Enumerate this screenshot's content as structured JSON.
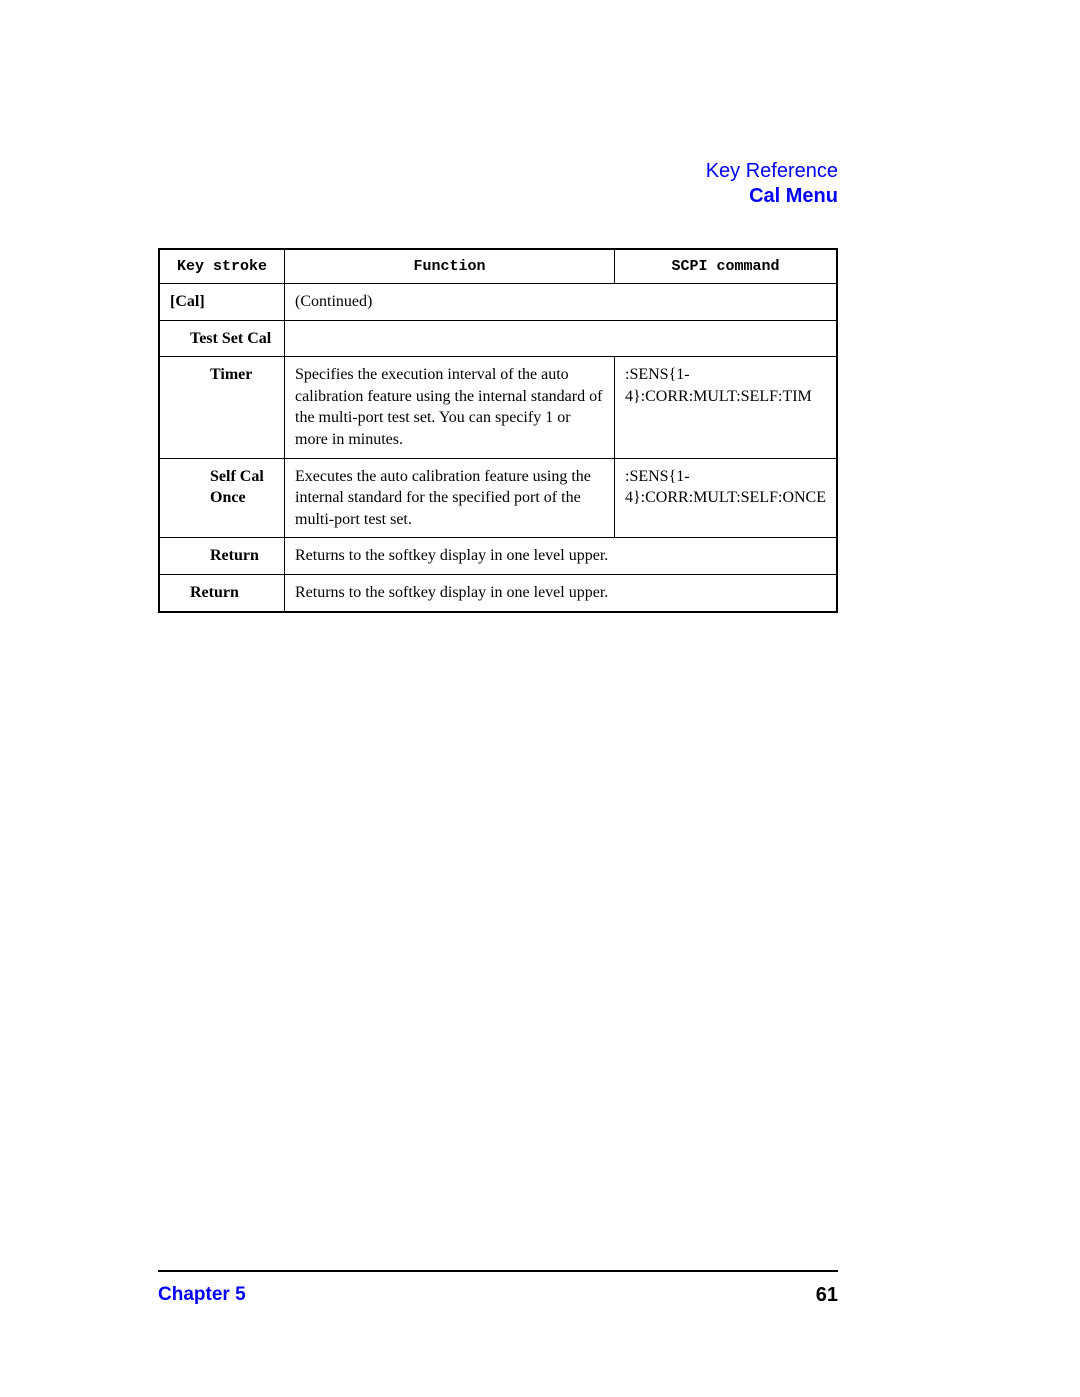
{
  "header": {
    "link": "Key Reference",
    "title": "Cal Menu"
  },
  "table": {
    "headers": {
      "keystroke": "Key stroke",
      "function": "Function",
      "scpi": "SCPI command"
    },
    "rows": {
      "cal": {
        "keystroke": "[Cal]",
        "function": "(Continued)"
      },
      "testSetCal": {
        "keystroke": "Test Set Cal"
      },
      "timer": {
        "keystroke": "Timer",
        "function": "Specifies the execution interval of the auto calibration feature using the internal standard of the multi-port test set. You can specify 1 or more in minutes.",
        "scpi": ":SENS{1-4}:CORR:MULT:SELF:TIM"
      },
      "selfCalOnce": {
        "keystroke": "Self Cal Once",
        "function": "Executes the auto calibration feature using the internal standard for the specified port of the multi-port test set.",
        "scpi": ":SENS{1-4}:CORR:MULT:SELF:ONCE"
      },
      "returnInner": {
        "keystroke": "Return",
        "function": "Returns to the softkey display in one level upper."
      },
      "returnOuter": {
        "keystroke": "Return",
        "function": "Returns to the softkey display in one level upper."
      }
    }
  },
  "footer": {
    "chapter": "Chapter 5",
    "page": "61"
  }
}
